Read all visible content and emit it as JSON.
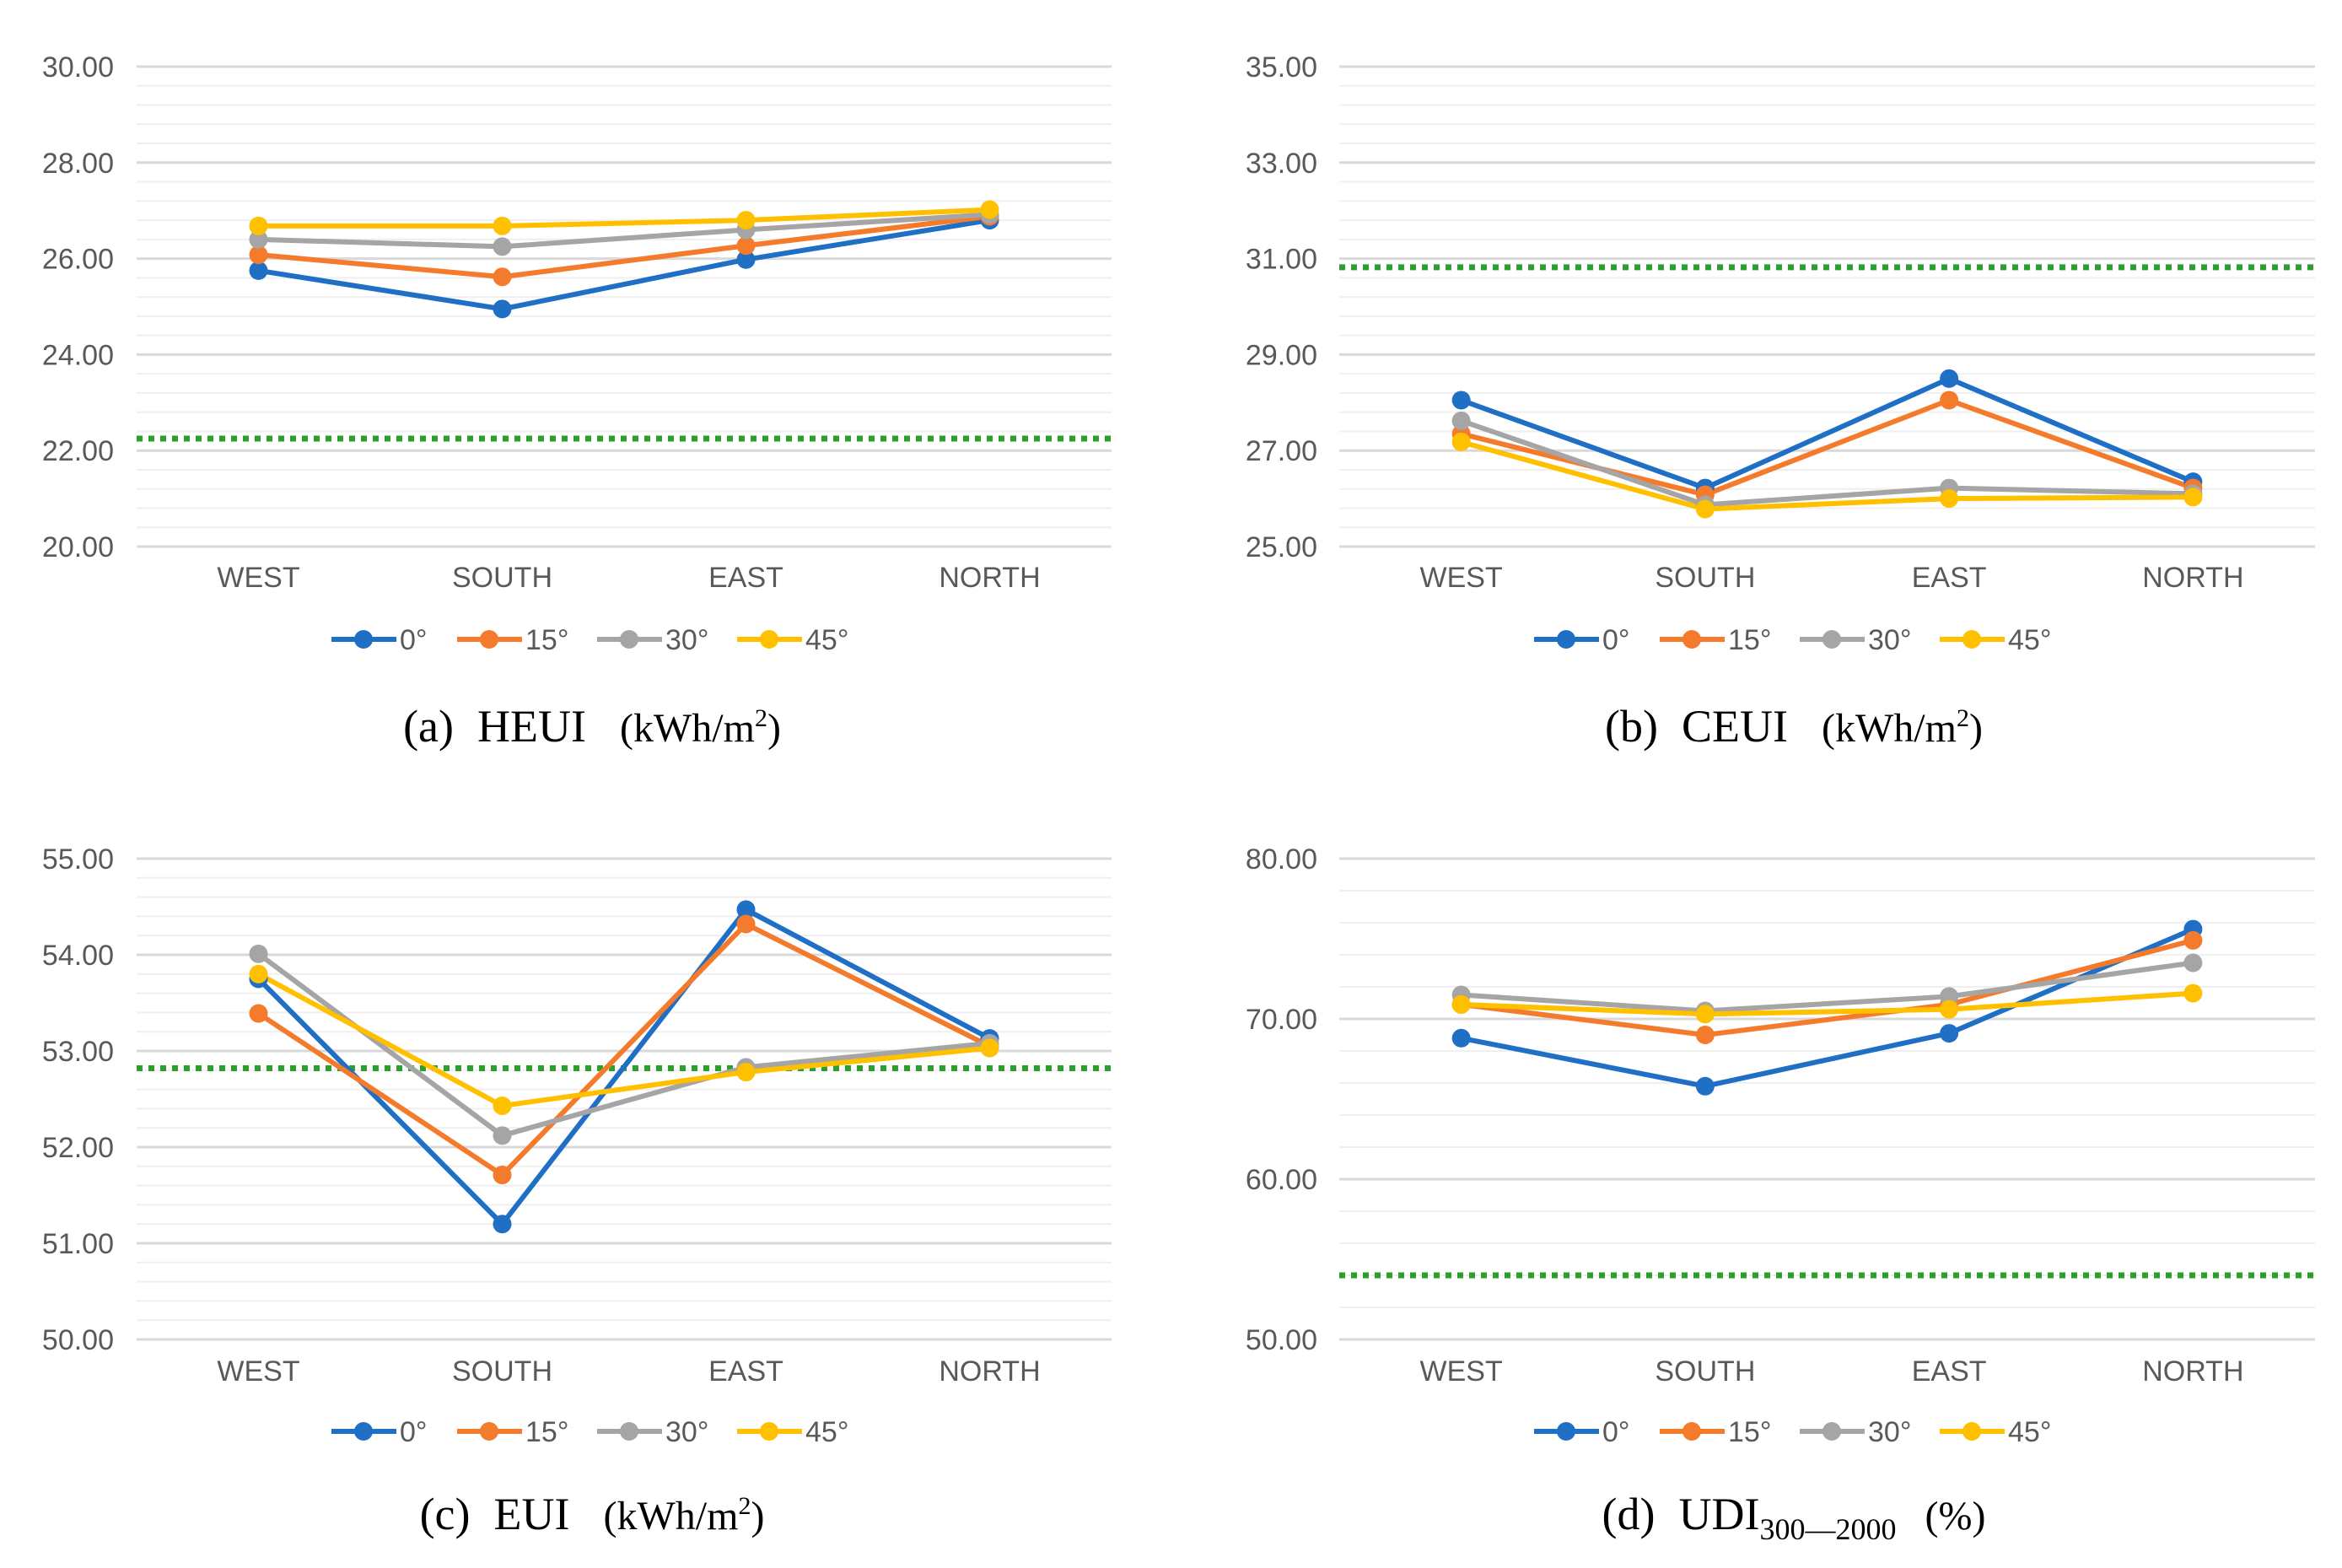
{
  "legend_labels": [
    "0°",
    "15°",
    "30°",
    "45°"
  ],
  "colors": {
    "s0": "#1f6fc5",
    "s15": "#f47b2c",
    "s30": "#a5a5a5",
    "s45": "#ffc000",
    "reference": "#2ca02c",
    "gridline": "#d9d9d9",
    "text": "#595959"
  },
  "captions": [
    {
      "prefix": "(a)",
      "name": "HEUI",
      "unit_open": "(kWh/m",
      "unit_sup": "2",
      "unit_close": ")"
    },
    {
      "prefix": "(b)",
      "name": "CEUI",
      "unit_open": "(kWh/m",
      "unit_sup": "2",
      "unit_close": ")"
    },
    {
      "prefix": "(c)",
      "name": "EUI",
      "unit_open": "(kWh/m",
      "unit_sup": "2",
      "unit_close": ")"
    },
    {
      "prefix": "(d)",
      "name": "UDI",
      "name_sub": "300—2000",
      "unit": "(%)"
    }
  ],
  "chart_data": [
    {
      "type": "line",
      "title": "HEUI (kWh/m2)",
      "categories": [
        "WEST",
        "SOUTH",
        "EAST",
        "NORTH"
      ],
      "ylim": [
        20,
        30
      ],
      "yticks": [
        "20.00",
        "22.00",
        "24.00",
        "26.00",
        "28.00",
        "30.00"
      ],
      "ytick_values": [
        20,
        22,
        24,
        26,
        28,
        30
      ],
      "minor_step": 0.4,
      "reference_line": 22.25,
      "series": [
        {
          "name": "0°",
          "values": [
            25.75,
            24.95,
            25.98,
            26.8
          ]
        },
        {
          "name": "15°",
          "values": [
            26.08,
            25.62,
            26.27,
            26.88
          ]
        },
        {
          "name": "30°",
          "values": [
            26.4,
            26.25,
            26.6,
            26.92
          ]
        },
        {
          "name": "45°",
          "values": [
            26.68,
            26.68,
            26.8,
            27.02
          ]
        }
      ]
    },
    {
      "type": "line",
      "title": "CEUI (kWh/m2)",
      "categories": [
        "WEST",
        "SOUTH",
        "EAST",
        "NORTH"
      ],
      "ylim": [
        25,
        35
      ],
      "yticks": [
        "25.00",
        "27.00",
        "29.00",
        "31.00",
        "33.00",
        "35.00"
      ],
      "ytick_values": [
        25,
        27,
        29,
        31,
        33,
        35
      ],
      "minor_step": 0.4,
      "reference_line": 30.82,
      "series": [
        {
          "name": "0°",
          "values": [
            28.05,
            26.22,
            28.5,
            26.35
          ]
        },
        {
          "name": "15°",
          "values": [
            27.35,
            26.08,
            28.05,
            26.22
          ]
        },
        {
          "name": "30°",
          "values": [
            27.62,
            25.87,
            26.22,
            26.1
          ]
        },
        {
          "name": "45°",
          "values": [
            27.18,
            25.78,
            26.0,
            26.03
          ]
        }
      ]
    },
    {
      "type": "line",
      "title": "EUI (kWh/m2)",
      "categories": [
        "WEST",
        "SOUTH",
        "EAST",
        "NORTH"
      ],
      "ylim": [
        50,
        55
      ],
      "yticks": [
        "50.00",
        "51.00",
        "52.00",
        "53.00",
        "54.00",
        "55.00"
      ],
      "ytick_values": [
        50,
        51,
        52,
        53,
        54,
        55
      ],
      "minor_step": 0.2,
      "reference_line": 52.82,
      "series": [
        {
          "name": "0°",
          "values": [
            53.75,
            51.2,
            54.47,
            53.13
          ]
        },
        {
          "name": "15°",
          "values": [
            53.39,
            51.71,
            54.32,
            53.05
          ]
        },
        {
          "name": "30°",
          "values": [
            54.01,
            52.12,
            52.83,
            53.08
          ]
        },
        {
          "name": "45°",
          "values": [
            53.8,
            52.43,
            52.78,
            53.03
          ]
        }
      ]
    },
    {
      "type": "line",
      "title": "UDI300—2000 (%)",
      "categories": [
        "WEST",
        "SOUTH",
        "EAST",
        "NORTH"
      ],
      "ylim": [
        50,
        80
      ],
      "yticks": [
        "50.00",
        "60.00",
        "70.00",
        "80.00"
      ],
      "ytick_values": [
        50,
        60,
        70,
        80
      ],
      "minor_step": 2,
      "reference_line": 54.0,
      "series": [
        {
          "name": "0°",
          "values": [
            68.8,
            65.8,
            69.1,
            75.6
          ]
        },
        {
          "name": "15°",
          "values": [
            70.9,
            69.0,
            70.9,
            74.9
          ]
        },
        {
          "name": "30°",
          "values": [
            71.5,
            70.5,
            71.4,
            73.5
          ]
        },
        {
          "name": "45°",
          "values": [
            70.9,
            70.3,
            70.6,
            71.6
          ]
        }
      ]
    }
  ]
}
